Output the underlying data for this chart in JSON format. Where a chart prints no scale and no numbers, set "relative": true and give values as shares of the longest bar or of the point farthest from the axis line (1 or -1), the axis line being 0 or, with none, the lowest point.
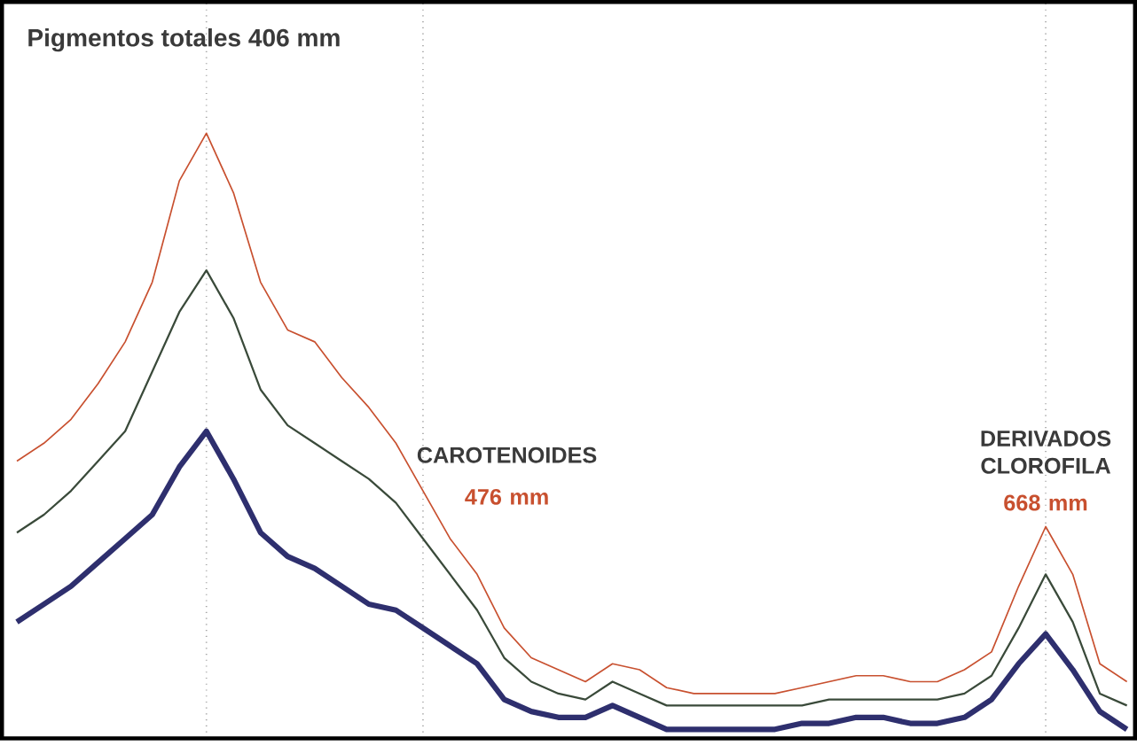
{
  "chart_data": {
    "type": "line",
    "relative": true,
    "grid": "x",
    "marker": "none",
    "line_style": "solid",
    "title": "Pigmentos totales **406 mm**",
    "annotations": [
      "CAROTENOIDES",
      "476 mm",
      "DERIVADOS CLOROFILA",
      "668 mm"
    ],
    "categories": [
      null,
      null,
      null,
      null,
      null,
      null,
      null,
      null,
      null,
      null,
      null,
      null,
      null,
      null,
      null,
      null,
      null,
      null,
      null,
      null,
      null,
      null,
      null,
      null,
      null,
      null,
      null,
      null,
      null,
      null,
      null,
      null,
      null,
      null,
      null,
      null,
      null,
      null,
      null,
      null,
      null,
      null
    ],
    "series": [
      {
        "color": "#c8502f",
        "values": [
          0.45,
          0.48,
          0.52,
          0.58,
          0.65,
          0.75,
          0.92,
          1,
          0.9,
          0.75,
          0.67,
          0.65,
          0.59,
          0.54,
          0.48,
          0.4,
          0.32,
          0.26,
          0.17,
          0.12,
          0.1,
          0.08,
          0.11,
          0.1,
          0.07,
          0.06,
          0.06,
          0.06,
          0.06,
          0.07,
          0.08,
          0.09,
          0.09,
          0.08,
          0.08,
          0.1,
          0.13,
          0.24,
          0.34,
          0.26,
          0.11,
          0.08
        ]
      },
      {
        "color": "#3a4a3a",
        "values": [
          0.33,
          0.36,
          0.4,
          0.45,
          0.5,
          0.6,
          0.7,
          0.77,
          0.69,
          0.57,
          0.51,
          0.48,
          0.45,
          0.42,
          0.38,
          0.32,
          0.26,
          0.2,
          0.12,
          0.08,
          0.06,
          0.05,
          0.08,
          0.06,
          0.04,
          0.04,
          0.04,
          0.04,
          0.04,
          0.04,
          0.05,
          0.05,
          0.05,
          0.05,
          0.05,
          0.06,
          0.09,
          0.17,
          0.26,
          0.18,
          0.06,
          0.04
        ]
      },
      {
        "color": "#2e2f6e",
        "values": [
          0.18,
          0.21,
          0.24,
          0.28,
          0.32,
          0.36,
          0.44,
          0.5,
          0.42,
          0.33,
          0.29,
          0.27,
          0.24,
          0.21,
          0.2,
          0.17,
          0.14,
          0.11,
          0.05,
          0.03,
          0.02,
          0.02,
          0.04,
          0.02,
          0,
          0,
          0,
          0,
          0,
          0.01,
          0.01,
          0.02,
          0.02,
          0.01,
          0.01,
          0.02,
          0.05,
          0.11,
          0.16,
          0.1,
          0.03,
          0
        ]
      }
    ]
  }
}
